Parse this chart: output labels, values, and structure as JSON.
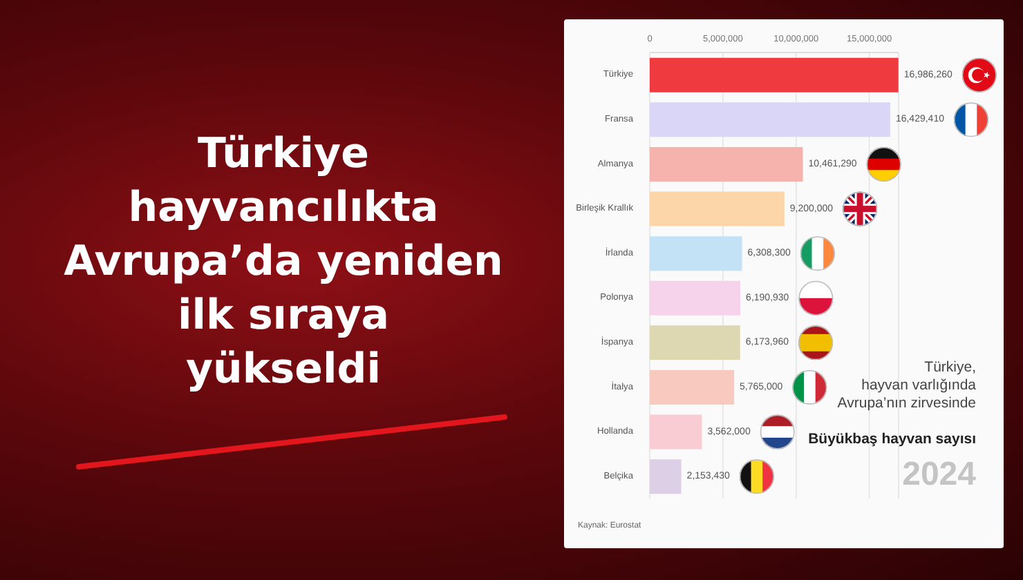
{
  "chart_data": {
    "type": "bar",
    "orientation": "horizontal",
    "title": "Türkiye hayvancılıkta Avrupa’da yeniden ilk sıraya yükseldi",
    "categories": [
      "Türkiye",
      "Fransa",
      "Almanya",
      "Birleşik Krallık",
      "İrlanda",
      "Polonya",
      "İspanya",
      "İtalya",
      "Hollanda",
      "Belçika"
    ],
    "values": [
      16986260,
      16429410,
      10461290,
      9200000,
      6308300,
      6190930,
      6173960,
      5765000,
      3562000,
      2153430
    ],
    "colors": [
      "#ef3b3f",
      "#d9d6f7",
      "#f6b3ad",
      "#fcd6a8",
      "#c3e2f6",
      "#f6d3ea",
      "#ddd7b2",
      "#f8cabf",
      "#f9cbd2",
      "#dccfe6"
    ],
    "value_labels": [
      "16,986,260",
      "16,429,410",
      "10,461,290",
      "9,200,000",
      "6,308,300",
      "6,190,930",
      "6,173,960",
      "5,765,000",
      "3,562,000",
      "2,153,430"
    ],
    "xlim": [
      0,
      17000000
    ],
    "xticks": [
      0,
      {
        "value": 5000000,
        "label": "5,000,000"
      },
      {
        "value": 10000000,
        "label": "10,000,000"
      },
      {
        "value": 15000000,
        "label": "15,000,000"
      }
    ],
    "grid": "x",
    "annotations": [
      "Türkiye, hayvan varlığında Avrupa’nın zirvesinde",
      "Büyükbaş hayvan sayısı",
      "2024",
      "Kaynak: Eurostat"
    ]
  }
}
